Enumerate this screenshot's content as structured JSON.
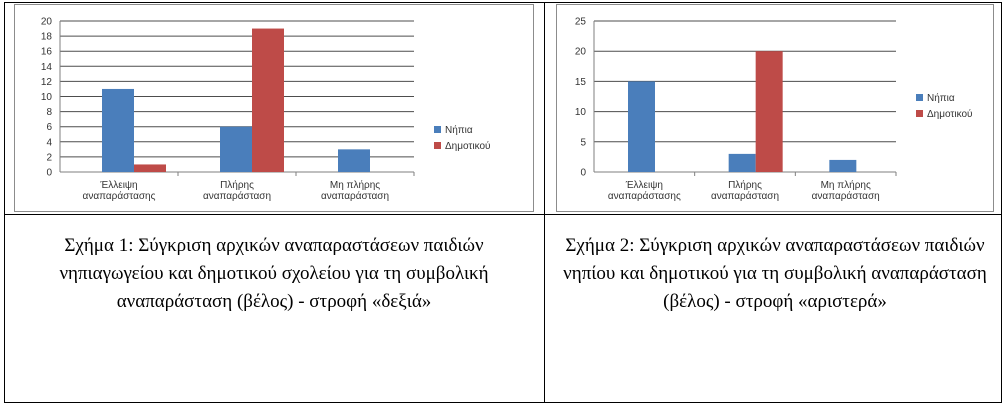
{
  "chart_data": [
    {
      "type": "bar",
      "categories": [
        "Έλλειψη αναπαράστασης",
        "Πλήρης αναπαράσταση",
        "Μη πλήρης αναπαράσταση"
      ],
      "series": [
        {
          "name": "Νήπια",
          "values": [
            11,
            6,
            3
          ],
          "color": "#4a7ebb"
        },
        {
          "name": "Δημοτικού",
          "values": [
            1,
            19,
            0
          ],
          "color": "#be4b48"
        }
      ],
      "ylim": [
        0,
        20
      ],
      "yticks": [
        0,
        2,
        4,
        6,
        8,
        10,
        12,
        14,
        16,
        18,
        20
      ],
      "legend": "right",
      "grid": true
    },
    {
      "type": "bar",
      "categories": [
        "Έλλειψη αναπαράστασης",
        "Πλήρης αναπαράσταση",
        "Μη πλήρης αναπαράσταση"
      ],
      "series": [
        {
          "name": "Νήπια",
          "values": [
            15,
            3,
            2
          ],
          "color": "#4a7ebb"
        },
        {
          "name": "Δημοτικού",
          "values": [
            0,
            20,
            0
          ],
          "color": "#be4b48"
        }
      ],
      "ylim": [
        0,
        25
      ],
      "yticks": [
        0,
        5,
        10,
        15,
        20,
        25
      ],
      "legend": "right",
      "grid": true
    }
  ],
  "captions": [
    "Σχήμα 1: Σύγκριση αρχικών αναπαραστάσεων παιδιών νηπιαγωγείου και δημοτικού σχολείου για τη συμβολική αναπαράσταση (βέλος) - στροφή «δεξιά»",
    "Σχήμα 2: Σύγκριση αρχικών αναπαραστάσεων παιδιών νηπίου και δημοτικού για τη συμβολική αναπαράσταση (βέλος) - στροφή «αριστερά»"
  ]
}
